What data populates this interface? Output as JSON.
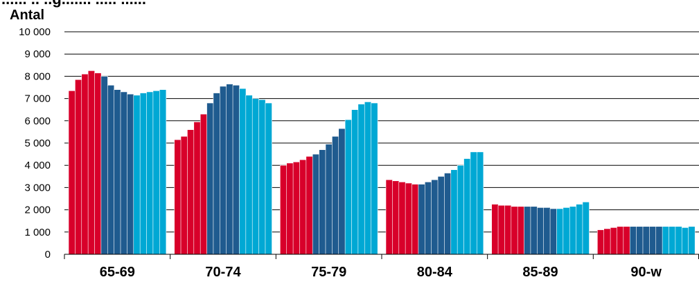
{
  "chart_data": {
    "type": "bar",
    "title_partial": "...... .. ..g....... ..... ......",
    "ylabel": "Antal",
    "ylim": [
      0,
      10000
    ],
    "ytick_labels": [
      "0",
      "1 000",
      "2 000",
      "3 000",
      "4 000",
      "5 000",
      "6 000",
      "7 000",
      "8 000",
      "9 000",
      "10 000"
    ],
    "grid": true,
    "categories": [
      "65-69",
      "70-74",
      "75-79",
      "80-84",
      "85-89",
      "90-w"
    ],
    "colors": [
      "#d8002a",
      "#1f5b8f",
      "#00a8d4"
    ],
    "groups": [
      [
        7350,
        7850,
        8100,
        8250,
        8150,
        8000,
        7600,
        7400,
        7300,
        7200,
        7150,
        7250,
        7300,
        7350,
        7400
      ],
      [
        5150,
        5300,
        5600,
        5950,
        6300,
        6800,
        7250,
        7550,
        7650,
        7600,
        7450,
        7150,
        7000,
        6950,
        6800
      ],
      [
        4000,
        4100,
        4150,
        4250,
        4400,
        4500,
        4700,
        4950,
        5300,
        5650,
        6050,
        6500,
        6750,
        6850,
        6800
      ],
      [
        3350,
        3300,
        3250,
        3200,
        3150,
        3150,
        3250,
        3350,
        3500,
        3650,
        3800,
        4000,
        4300,
        4600,
        4600
      ],
      [
        2250,
        2200,
        2200,
        2150,
        2150,
        2150,
        2150,
        2100,
        2100,
        2050,
        2050,
        2100,
        2150,
        2250,
        2350
      ],
      [
        1100,
        1150,
        1200,
        1250,
        1250,
        1250,
        1250,
        1250,
        1250,
        1250,
        1250,
        1250,
        1250,
        1200,
        1250
      ]
    ]
  }
}
